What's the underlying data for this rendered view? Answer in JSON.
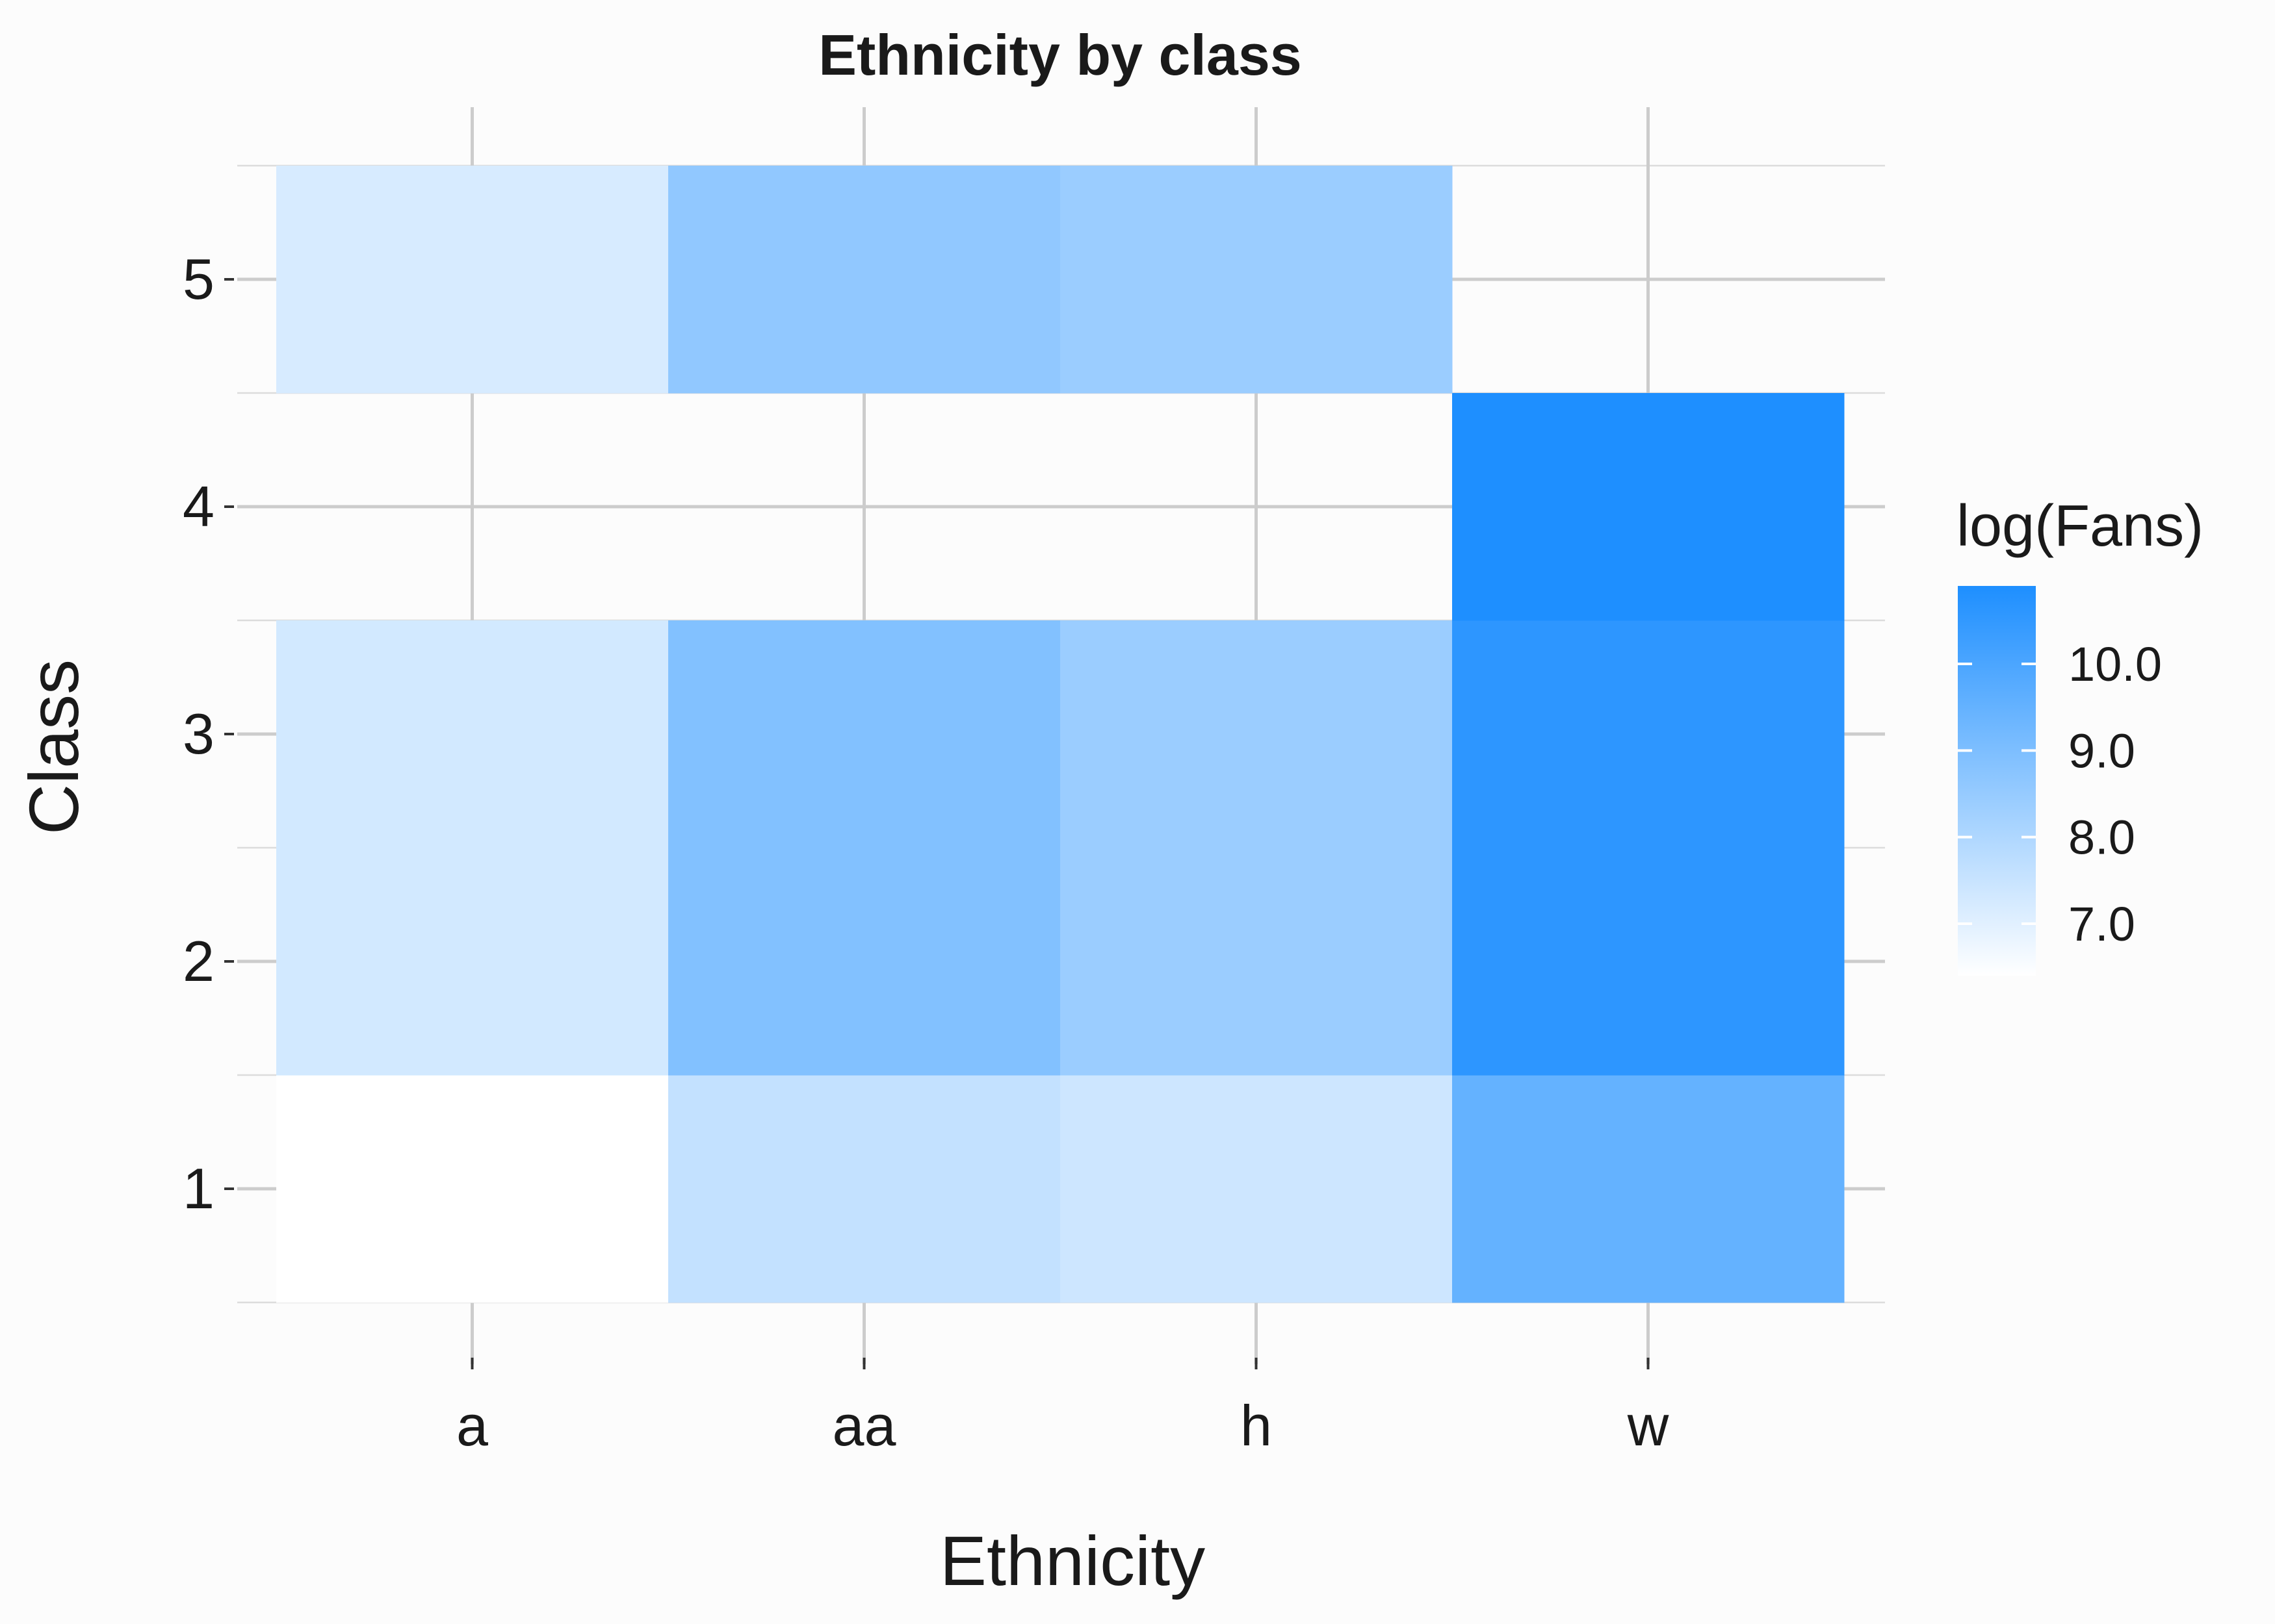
{
  "chart_data": {
    "type": "heatmap",
    "title": "Ethnicity by class",
    "xlabel": "Ethnicity",
    "ylabel": "Class",
    "x_categories": [
      "a",
      "aa",
      "h",
      "w"
    ],
    "y_categories": [
      "1",
      "2",
      "3",
      "4",
      "5"
    ],
    "cells": [
      {
        "x": "a",
        "y": "1",
        "value": 6.4
      },
      {
        "x": "aa",
        "y": "1",
        "value": 7.6
      },
      {
        "x": "h",
        "y": "1",
        "value": 7.4
      },
      {
        "x": "w",
        "y": "1",
        "value": 9.5
      },
      {
        "x": "a",
        "y": "2",
        "value": 7.3
      },
      {
        "x": "aa",
        "y": "2",
        "value": 8.9
      },
      {
        "x": "h",
        "y": "2",
        "value": 8.4
      },
      {
        "x": "w",
        "y": "2",
        "value": 10.6
      },
      {
        "x": "a",
        "y": "3",
        "value": 7.3
      },
      {
        "x": "aa",
        "y": "3",
        "value": 8.9
      },
      {
        "x": "h",
        "y": "3",
        "value": 8.4
      },
      {
        "x": "w",
        "y": "3",
        "value": 10.6
      },
      {
        "x": "w",
        "y": "4",
        "value": 10.9
      },
      {
        "x": "a",
        "y": "5",
        "value": 7.2
      },
      {
        "x": "aa",
        "y": "5",
        "value": 8.6
      },
      {
        "x": "h",
        "y": "5",
        "value": 8.4
      }
    ],
    "legend": {
      "title": "log(Fans)",
      "breaks": [
        7.0,
        8.0,
        9.0,
        10.0
      ],
      "labels": [
        "7.0",
        "8.0",
        "9.0",
        "10.0"
      ],
      "range": [
        6.4,
        10.9
      ],
      "low_color": "#ffffff",
      "high_color": "#1e8fff"
    },
    "grid": true
  }
}
